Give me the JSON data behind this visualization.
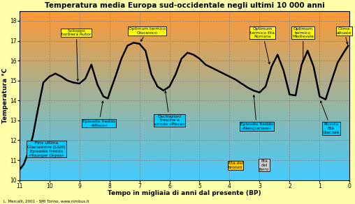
{
  "title": "Temperatura media Europa sud-occidentale negli ultimi 10 000 anni",
  "xlabel": "Tempo in migliaia di anni dal presente (BP)",
  "ylabel": "Temperatura °C",
  "background_color": "#ffffaa",
  "xlim": [
    11,
    0
  ],
  "ylim": [
    10,
    18.5
  ],
  "yticks": [
    10,
    11,
    12,
    13,
    14,
    15,
    16,
    17,
    18
  ],
  "xticks": [
    11,
    10,
    9,
    8,
    7,
    6,
    5,
    4,
    3,
    2,
    1,
    0
  ],
  "credit": "L. Mercalli, 2001 - SMI Torino, www.nimbus.it",
  "gradient_top_color": "#ff9933",
  "gradient_bottom_color": "#44ccff",
  "curve_x": [
    11.0,
    10.85,
    10.7,
    10.55,
    10.4,
    10.2,
    10.0,
    9.8,
    9.6,
    9.4,
    9.2,
    9.0,
    8.8,
    8.6,
    8.4,
    8.2,
    8.05,
    8.0,
    7.8,
    7.6,
    7.4,
    7.2,
    7.0,
    6.8,
    6.6,
    6.4,
    6.2,
    6.0,
    5.8,
    5.6,
    5.4,
    5.2,
    5.0,
    4.8,
    4.6,
    4.4,
    4.2,
    4.0,
    3.8,
    3.6,
    3.4,
    3.2,
    3.0,
    2.8,
    2.6,
    2.4,
    2.2,
    2.0,
    1.8,
    1.6,
    1.4,
    1.2,
    1.0,
    0.8,
    0.6,
    0.4,
    0.2,
    0.05
  ],
  "curve_y": [
    10.5,
    10.8,
    11.4,
    12.2,
    13.4,
    14.9,
    15.2,
    15.35,
    15.2,
    15.0,
    14.9,
    14.85,
    15.1,
    15.8,
    14.8,
    14.2,
    14.1,
    14.35,
    15.2,
    16.1,
    16.75,
    16.9,
    16.85,
    16.5,
    15.3,
    14.7,
    14.5,
    14.7,
    15.3,
    16.1,
    16.4,
    16.3,
    16.1,
    15.8,
    15.65,
    15.5,
    15.35,
    15.2,
    15.05,
    14.85,
    14.65,
    14.5,
    14.4,
    14.7,
    15.7,
    16.3,
    15.5,
    14.3,
    14.25,
    15.8,
    16.5,
    15.7,
    14.2,
    14.05,
    15.0,
    15.9,
    16.4,
    16.75
  ]
}
